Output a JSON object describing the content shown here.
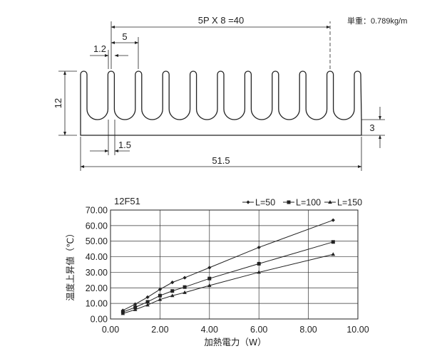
{
  "weight_label": "単重：0.789kg/m",
  "heatsink": {
    "pitch_label": "5P X 8 =40",
    "fin_pitch_label": "5",
    "fin_thickness_label": "1.2",
    "height_label": "12",
    "base_thickness_label": "3",
    "gap_label": "1.5",
    "width_label": "51.5",
    "fin_count": 11
  },
  "chart_data": {
    "type": "line",
    "title": "12F51",
    "xlabel": "加熱電力（W）",
    "ylabel": "温度上昇値（℃）",
    "xlim": [
      0,
      10
    ],
    "ylim": [
      0,
      70
    ],
    "x_ticks": [
      "0.00",
      "2.00",
      "4.00",
      "6.00",
      "8.00",
      "10.00"
    ],
    "y_ticks": [
      "0.00",
      "10.00",
      "20.00",
      "30.00",
      "40.00",
      "50.00",
      "60.00",
      "70.00"
    ],
    "grid": true,
    "legend_position": "top-right",
    "series": [
      {
        "name": "L=50",
        "marker": "diamond",
        "points": [
          [
            0.5,
            5.5
          ],
          [
            1.0,
            9.5
          ],
          [
            1.5,
            14.0
          ],
          [
            2.0,
            19.0
          ],
          [
            2.5,
            23.5
          ],
          [
            3.0,
            26.5
          ],
          [
            4.0,
            33.0
          ],
          [
            6.0,
            46.0
          ],
          [
            9.0,
            63.5
          ]
        ]
      },
      {
        "name": "L=100",
        "marker": "square",
        "points": [
          [
            0.5,
            4.5
          ],
          [
            1.0,
            7.5
          ],
          [
            1.5,
            11.0
          ],
          [
            2.0,
            15.0
          ],
          [
            2.5,
            18.0
          ],
          [
            3.0,
            20.5
          ],
          [
            4.0,
            26.0
          ],
          [
            6.0,
            35.5
          ],
          [
            9.0,
            49.5
          ]
        ]
      },
      {
        "name": "L=150",
        "marker": "triangle",
        "points": [
          [
            0.5,
            3.5
          ],
          [
            1.0,
            6.0
          ],
          [
            1.5,
            9.0
          ],
          [
            2.0,
            12.5
          ],
          [
            2.5,
            15.0
          ],
          [
            3.0,
            17.0
          ],
          [
            4.0,
            21.5
          ],
          [
            6.0,
            30.0
          ],
          [
            9.0,
            41.5
          ]
        ]
      }
    ]
  }
}
